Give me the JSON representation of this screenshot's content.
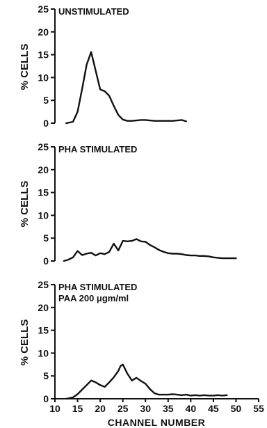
{
  "figure": {
    "xlabel": "CHANNEL NUMBER",
    "x_ticks": [
      "10",
      "15",
      "20",
      "25",
      "30",
      "35",
      "40",
      "45",
      "50",
      "55"
    ],
    "ink_color": "#111111",
    "background": "#ffffff"
  },
  "chart_data": [
    {
      "type": "line",
      "title": "UNSTIMULATED",
      "subtitle": "",
      "ylabel": "% CELLS",
      "xlim": [
        10,
        55
      ],
      "ylim": [
        0,
        25
      ],
      "y_ticks": [
        "0",
        "5",
        "10",
        "15",
        "20",
        "25"
      ],
      "grid": false,
      "series": [
        {
          "x": [
            12.5,
            14,
            15,
            16,
            17,
            18,
            19,
            20,
            21,
            22,
            23,
            24,
            25,
            26,
            27,
            28,
            29,
            30,
            31,
            32,
            33,
            34,
            35,
            36,
            37,
            38,
            39
          ],
          "y": [
            0,
            0.3,
            2.5,
            7.5,
            12.8,
            15.6,
            11.5,
            7.4,
            7.0,
            6.0,
            3.8,
            1.8,
            0.8,
            0.5,
            0.5,
            0.6,
            0.7,
            0.7,
            0.6,
            0.5,
            0.5,
            0.5,
            0.5,
            0.5,
            0.6,
            0.7,
            0.4
          ]
        }
      ]
    },
    {
      "type": "line",
      "title": "PHA STIMULATED",
      "subtitle": "",
      "ylabel": "% CELLS",
      "xlim": [
        10,
        55
      ],
      "ylim": [
        0,
        25
      ],
      "y_ticks": [
        "0",
        "5",
        "10",
        "15",
        "20",
        "25"
      ],
      "grid": false,
      "series": [
        {
          "x": [
            12,
            13,
            14,
            15,
            16,
            17,
            18,
            19,
            20,
            21,
            22,
            23,
            24,
            25,
            26,
            27,
            28,
            29,
            30,
            31,
            32,
            33,
            34,
            35,
            36,
            37,
            38,
            39,
            40,
            41,
            42,
            43,
            44,
            45,
            46,
            47,
            48,
            49,
            50
          ],
          "y": [
            0,
            0.3,
            0.8,
            2.2,
            1.3,
            1.6,
            1.8,
            1.2,
            1.7,
            1.5,
            2.0,
            3.8,
            2.3,
            4.4,
            4.3,
            4.4,
            4.8,
            4.3,
            4.2,
            3.5,
            3.0,
            2.4,
            2.0,
            1.7,
            1.6,
            1.6,
            1.5,
            1.3,
            1.2,
            1.2,
            1.1,
            1.1,
            1.0,
            0.8,
            0.7,
            0.6,
            0.6,
            0.6,
            0.6
          ]
        }
      ]
    },
    {
      "type": "line",
      "title": "PHA STIMULATED",
      "subtitle": "PAA 200 μgm/ml",
      "ylabel": "% CELLS",
      "xlim": [
        10,
        55
      ],
      "ylim": [
        0,
        25
      ],
      "y_ticks": [
        "0",
        "5",
        "10",
        "15",
        "20",
        "25"
      ],
      "grid": false,
      "series": [
        {
          "x": [
            12.5,
            14,
            15,
            16,
            17,
            18,
            19,
            20,
            21,
            22,
            23,
            24,
            24.5,
            25,
            26,
            27,
            28,
            29,
            30,
            31,
            32,
            33,
            34,
            35,
            36,
            37,
            38,
            39,
            40,
            41,
            42,
            43,
            44,
            45,
            46,
            47,
            48
          ],
          "y": [
            0,
            0.3,
            1.0,
            2.0,
            3.0,
            4.0,
            3.6,
            3.0,
            2.6,
            3.6,
            4.7,
            6.1,
            7.2,
            7.5,
            5.5,
            4.0,
            4.6,
            3.9,
            3.3,
            2.1,
            1.2,
            0.9,
            0.9,
            0.9,
            1.0,
            0.9,
            0.8,
            0.9,
            0.7,
            0.8,
            0.7,
            0.8,
            0.7,
            0.7,
            0.8,
            0.7,
            0.8
          ]
        }
      ]
    }
  ]
}
